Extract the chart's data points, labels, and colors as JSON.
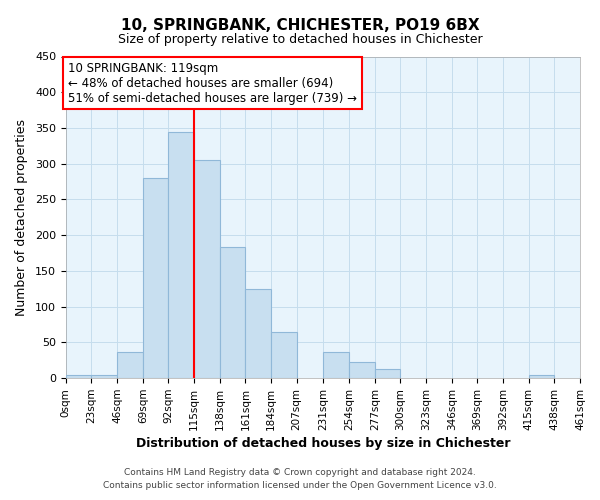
{
  "title": "10, SPRINGBANK, CHICHESTER, PO19 6BX",
  "subtitle": "Size of property relative to detached houses in Chichester",
  "xlabel": "Distribution of detached houses by size in Chichester",
  "ylabel": "Number of detached properties",
  "bin_edges": [
    0,
    23,
    46,
    69,
    92,
    115,
    138,
    161,
    184,
    207,
    231,
    254,
    277,
    300,
    323,
    346,
    369,
    392,
    415,
    438,
    461
  ],
  "bin_labels": [
    "0sqm",
    "23sqm",
    "46sqm",
    "69sqm",
    "92sqm",
    "115sqm",
    "138sqm",
    "161sqm",
    "184sqm",
    "207sqm",
    "231sqm",
    "254sqm",
    "277sqm",
    "300sqm",
    "323sqm",
    "346sqm",
    "369sqm",
    "392sqm",
    "415sqm",
    "438sqm",
    "461sqm"
  ],
  "counts": [
    5,
    5,
    36,
    280,
    345,
    305,
    183,
    125,
    65,
    0,
    37,
    22,
    13,
    0,
    0,
    0,
    0,
    0,
    5,
    0,
    3
  ],
  "bar_facecolor": "#c8dff0",
  "bar_edgecolor": "#90b8d8",
  "vline_x": 115,
  "vline_color": "red",
  "annotation_title": "10 SPRINGBANK: 119sqm",
  "annotation_line1": "← 48% of detached houses are smaller (694)",
  "annotation_line2": "51% of semi-detached houses are larger (739) →",
  "annotation_box_color": "red",
  "ylim": [
    0,
    450
  ],
  "yticks": [
    0,
    50,
    100,
    150,
    200,
    250,
    300,
    350,
    400,
    450
  ],
  "footnote1": "Contains HM Land Registry data © Crown copyright and database right 2024.",
  "footnote2": "Contains public sector information licensed under the Open Government Licence v3.0.",
  "bg_color": "#e8f4fc",
  "grid_color": "#c5dded"
}
